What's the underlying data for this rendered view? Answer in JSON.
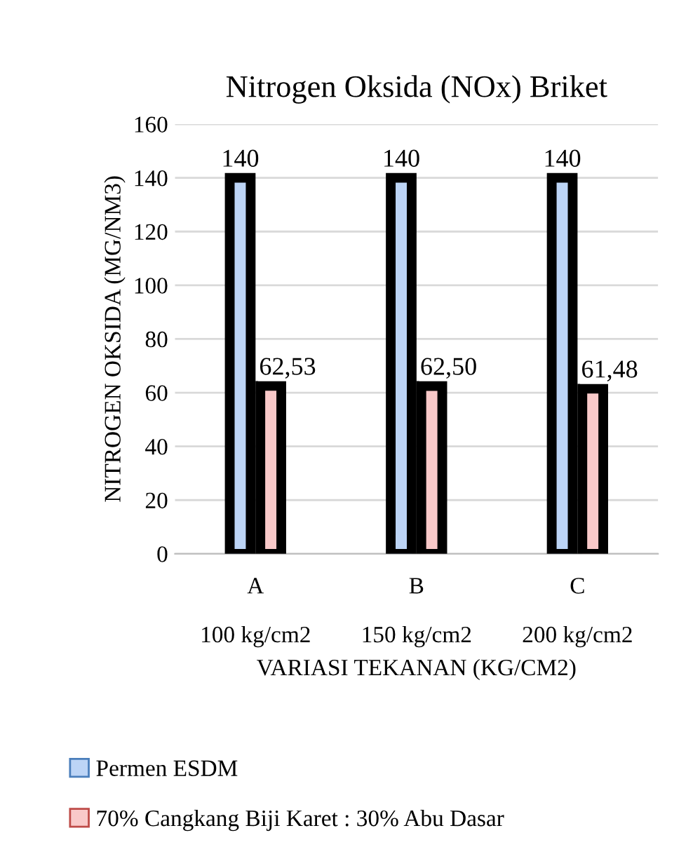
{
  "chart_data": {
    "type": "bar",
    "title": "Nitrogen Oksida (NOx) Briket",
    "xlabel": "VARIASI TEKANAN (KG/CM2)",
    "ylabel": "NITROGEN OKSIDA (MG/NM3)",
    "categories": [
      "A\n\n100 kg/cm2",
      "B\n\n150 kg/cm2",
      "C\n\n200 kg/cm2"
    ],
    "series": [
      {
        "name": "Permen ESDM",
        "color": "#bcd4f6",
        "values": [
          140,
          140,
          140
        ],
        "value_labels": [
          "140",
          "140",
          "140"
        ]
      },
      {
        "name": "70% Cangkang Biji Karet : 30% Abu Dasar",
        "color": "#f9c9c9",
        "values": [
          62.53,
          62.5,
          61.48
        ],
        "value_labels": [
          "62,53",
          "62,50",
          "61,48"
        ]
      }
    ],
    "ylim": [
      0,
      160
    ],
    "yticks": [
      0,
      20,
      40,
      60,
      80,
      100,
      120,
      140,
      160
    ],
    "grid": "y",
    "legend": "bottom"
  }
}
